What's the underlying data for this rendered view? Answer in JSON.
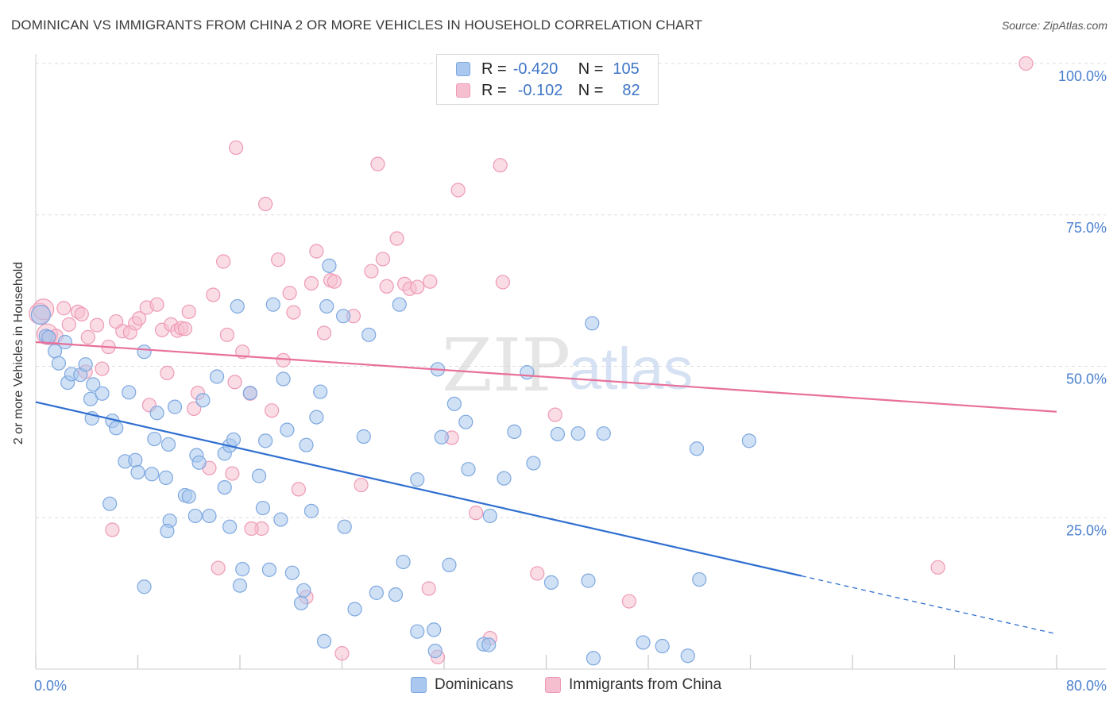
{
  "title": "DOMINICAN VS IMMIGRANTS FROM CHINA 2 OR MORE VEHICLES IN HOUSEHOLD CORRELATION CHART",
  "source": "Source: ZipAtlas.com",
  "watermark": {
    "zip": "ZIP",
    "atlas": "atlas"
  },
  "colors": {
    "blue_fill": "#aac8ef",
    "blue_stroke": "#7ea8df",
    "blue_line": "#2f6fd0",
    "pink_fill": "#f6bfd0",
    "pink_stroke": "#ee9ab6",
    "pink_line": "#e8709a",
    "axis_text": "#4a7fcf",
    "grid": "#dddddd"
  },
  "legend": {
    "rows": [
      {
        "r_label": "R =",
        "r_value": "-0.420",
        "n_label": "N =",
        "n_value": "105"
      },
      {
        "r_label": "R =",
        "r_value": "-0.102",
        "n_label": "N =",
        "n_value": "82"
      }
    ]
  },
  "bottom_legend": {
    "series1": "Dominicans",
    "series2": "Immigrants from China"
  },
  "chart_data": {
    "type": "scatter",
    "title": "DOMINICAN VS IMMIGRANTS FROM CHINA 2 OR MORE VEHICLES IN HOUSEHOLD CORRELATION CHART",
    "xlabel": "",
    "ylabel": "2 or more Vehicles in Household",
    "xlim": [
      0,
      80
    ],
    "ylim": [
      0,
      100
    ],
    "x_tick_labels": [
      "0.0%",
      "80.0%"
    ],
    "y_tick_labels": [
      "25.0%",
      "50.0%",
      "75.0%",
      "100.0%"
    ],
    "y_ticks": [
      25,
      50,
      75,
      100
    ],
    "grid": true,
    "legend_position": "top-center",
    "series": [
      {
        "name": "Dominicans",
        "r": -0.42,
        "n": 105,
        "trend": {
          "x": [
            0,
            60
          ],
          "y": [
            44.1,
            15.4
          ],
          "dashed_to": [
            80,
            5.8
          ]
        },
        "points": [
          [
            0.4,
            58.5
          ],
          [
            0.8,
            55.0
          ],
          [
            1.0,
            54.8
          ],
          [
            1.5,
            52.5
          ],
          [
            1.8,
            50.5
          ],
          [
            2.3,
            54.0
          ],
          [
            2.5,
            47.3
          ],
          [
            2.8,
            48.7
          ],
          [
            3.5,
            48.6
          ],
          [
            3.9,
            50.3
          ],
          [
            4.3,
            44.6
          ],
          [
            4.5,
            47.0
          ],
          [
            5.2,
            45.5
          ],
          [
            4.4,
            41.4
          ],
          [
            6.0,
            41.0
          ],
          [
            6.3,
            39.8
          ],
          [
            7.3,
            45.7
          ],
          [
            8.5,
            52.4
          ],
          [
            9.5,
            42.3
          ],
          [
            10.9,
            43.3
          ],
          [
            7.0,
            34.3
          ],
          [
            7.8,
            34.5
          ],
          [
            8.0,
            32.5
          ],
          [
            9.1,
            32.2
          ],
          [
            9.3,
            38.0
          ],
          [
            10.2,
            31.6
          ],
          [
            10.4,
            37.1
          ],
          [
            11.7,
            28.7
          ],
          [
            12.0,
            28.5
          ],
          [
            12.6,
            35.3
          ],
          [
            12.8,
            34.1
          ],
          [
            13.1,
            44.4
          ],
          [
            14.2,
            48.3
          ],
          [
            14.8,
            35.6
          ],
          [
            15.2,
            36.9
          ],
          [
            15.5,
            37.9
          ],
          [
            15.8,
            59.9
          ],
          [
            16.8,
            45.6
          ],
          [
            17.5,
            31.9
          ],
          [
            17.8,
            26.6
          ],
          [
            18.0,
            37.7
          ],
          [
            18.3,
            16.4
          ],
          [
            18.6,
            60.2
          ],
          [
            19.2,
            24.7
          ],
          [
            19.4,
            47.9
          ],
          [
            19.7,
            39.5
          ],
          [
            20.1,
            15.9
          ],
          [
            20.8,
            10.9
          ],
          [
            21.2,
            37.0
          ],
          [
            21.6,
            26.1
          ],
          [
            22.0,
            41.6
          ],
          [
            22.3,
            45.8
          ],
          [
            22.6,
            4.6
          ],
          [
            22.8,
            59.9
          ],
          [
            23.0,
            66.6
          ],
          [
            24.1,
            58.3
          ],
          [
            24.2,
            23.5
          ],
          [
            25.0,
            9.9
          ],
          [
            25.7,
            38.4
          ],
          [
            26.1,
            55.2
          ],
          [
            26.7,
            12.6
          ],
          [
            28.5,
            60.2
          ],
          [
            28.2,
            12.3
          ],
          [
            28.8,
            17.7
          ],
          [
            29.9,
            6.2
          ],
          [
            29.9,
            31.3
          ],
          [
            31.3,
            3.0
          ],
          [
            31.2,
            6.5
          ],
          [
            31.5,
            49.5
          ],
          [
            31.8,
            38.3
          ],
          [
            32.4,
            17.2
          ],
          [
            32.8,
            43.8
          ],
          [
            33.7,
            40.8
          ],
          [
            33.9,
            33.0
          ],
          [
            35.1,
            4.1
          ],
          [
            35.6,
            25.3
          ],
          [
            36.7,
            31.5
          ],
          [
            37.5,
            39.2
          ],
          [
            38.5,
            49.0
          ],
          [
            39.0,
            34.0
          ],
          [
            40.4,
            14.3
          ],
          [
            40.9,
            38.8
          ],
          [
            42.5,
            38.9
          ],
          [
            43.3,
            14.6
          ],
          [
            43.7,
            1.8
          ],
          [
            43.6,
            57.1
          ],
          [
            44.5,
            38.9
          ],
          [
            47.6,
            4.4
          ],
          [
            49.1,
            3.8
          ],
          [
            51.1,
            2.2
          ],
          [
            51.8,
            36.4
          ],
          [
            52.0,
            14.8
          ],
          [
            55.9,
            37.7
          ],
          [
            10.5,
            24.5
          ],
          [
            12.5,
            25.3
          ],
          [
            13.6,
            25.3
          ],
          [
            15.2,
            23.5
          ],
          [
            16.2,
            16.5
          ],
          [
            16.0,
            13.8
          ],
          [
            8.5,
            13.6
          ],
          [
            5.8,
            27.3
          ],
          [
            10.3,
            22.8
          ],
          [
            14.8,
            30.0
          ],
          [
            35.5,
            4.0
          ],
          [
            21.0,
            13.0
          ]
        ]
      },
      {
        "name": "Immigrants from China",
        "r": -0.102,
        "n": 82,
        "trend": {
          "x": [
            0,
            80
          ],
          "y": [
            54.0,
            42.5
          ]
        },
        "points": [
          [
            0.3,
            58.7
          ],
          [
            0.6,
            59.4
          ],
          [
            0.9,
            55.3
          ],
          [
            1.1,
            54.7
          ],
          [
            1.6,
            55.0
          ],
          [
            2.6,
            56.9
          ],
          [
            2.2,
            59.6
          ],
          [
            3.3,
            59.0
          ],
          [
            3.6,
            58.6
          ],
          [
            3.9,
            49.1
          ],
          [
            4.1,
            54.8
          ],
          [
            4.8,
            56.8
          ],
          [
            5.2,
            49.6
          ],
          [
            5.7,
            53.2
          ],
          [
            6.3,
            57.4
          ],
          [
            6.8,
            55.8
          ],
          [
            7.4,
            55.6
          ],
          [
            7.8,
            57.1
          ],
          [
            8.1,
            57.9
          ],
          [
            8.7,
            59.7
          ],
          [
            8.9,
            43.6
          ],
          [
            9.5,
            60.2
          ],
          [
            9.9,
            56.0
          ],
          [
            10.3,
            48.9
          ],
          [
            10.6,
            56.9
          ],
          [
            11.1,
            55.9
          ],
          [
            11.4,
            56.3
          ],
          [
            11.7,
            56.2
          ],
          [
            12.0,
            59.0
          ],
          [
            12.4,
            43.0
          ],
          [
            12.7,
            45.6
          ],
          [
            13.6,
            33.2
          ],
          [
            13.9,
            61.8
          ],
          [
            14.3,
            16.7
          ],
          [
            14.7,
            67.3
          ],
          [
            15.0,
            55.2
          ],
          [
            15.4,
            32.3
          ],
          [
            15.6,
            47.4
          ],
          [
            15.7,
            86.1
          ],
          [
            16.2,
            52.4
          ],
          [
            16.8,
            45.5
          ],
          [
            17.7,
            23.2
          ],
          [
            18.0,
            76.8
          ],
          [
            18.5,
            42.7
          ],
          [
            19.0,
            67.6
          ],
          [
            19.4,
            51.0
          ],
          [
            19.9,
            62.1
          ],
          [
            20.2,
            58.9
          ],
          [
            20.6,
            29.7
          ],
          [
            21.2,
            11.9
          ],
          [
            21.6,
            63.7
          ],
          [
            22.0,
            69.0
          ],
          [
            22.6,
            55.5
          ],
          [
            23.1,
            64.2
          ],
          [
            23.4,
            64.0
          ],
          [
            24.0,
            2.6
          ],
          [
            24.9,
            58.3
          ],
          [
            25.5,
            30.4
          ],
          [
            26.3,
            65.7
          ],
          [
            26.8,
            83.4
          ],
          [
            27.2,
            67.7
          ],
          [
            27.5,
            63.2
          ],
          [
            28.3,
            71.1
          ],
          [
            28.9,
            63.6
          ],
          [
            29.3,
            62.8
          ],
          [
            29.9,
            63.1
          ],
          [
            30.8,
            13.3
          ],
          [
            30.9,
            64.0
          ],
          [
            31.5,
            2.0
          ],
          [
            32.6,
            38.2
          ],
          [
            33.1,
            79.1
          ],
          [
            34.5,
            25.8
          ],
          [
            35.6,
            5.1
          ],
          [
            36.4,
            83.2
          ],
          [
            36.6,
            63.9
          ],
          [
            39.3,
            15.8
          ],
          [
            40.7,
            42.0
          ],
          [
            46.5,
            11.2
          ],
          [
            70.7,
            16.8
          ],
          [
            77.6,
            100.0
          ],
          [
            6.0,
            23.0
          ],
          [
            16.9,
            23.2
          ]
        ]
      }
    ]
  }
}
